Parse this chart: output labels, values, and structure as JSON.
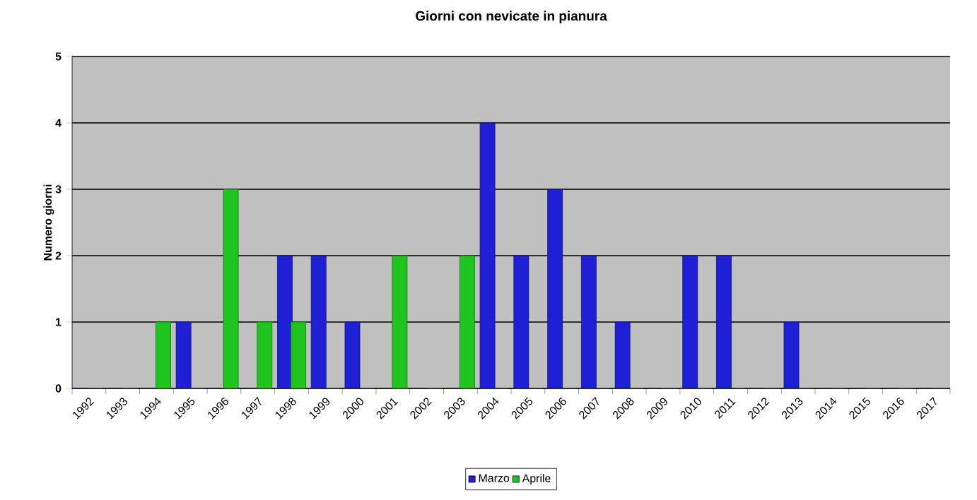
{
  "chart_data": {
    "type": "bar",
    "title": "Giorni con nevicate in pianura",
    "ylabel": "Numero giorni",
    "categories": [
      "1992",
      "1993",
      "1994",
      "1995",
      "1996",
      "1997",
      "1998",
      "1999",
      "2000",
      "2001",
      "2002",
      "2003",
      "2004",
      "2005",
      "2006",
      "2007",
      "2008",
      "2009",
      "2010",
      "2011",
      "2012",
      "2013",
      "2014",
      "2015",
      "2016",
      "2017"
    ],
    "series": [
      {
        "name": "Marzo",
        "color": "#1f1fd6",
        "values": [
          0,
          0,
          0,
          1,
          0,
          0,
          2,
          2,
          1,
          0,
          0,
          0,
          4,
          2,
          3,
          2,
          1,
          0,
          2,
          2,
          0,
          1,
          0,
          0,
          0,
          0
        ]
      },
      {
        "name": "Aprile",
        "color": "#1fc41f",
        "values": [
          0,
          0,
          1,
          0,
          3,
          1,
          1,
          0,
          0,
          2,
          0,
          2,
          0,
          0,
          0,
          0,
          0,
          0,
          0,
          0,
          0,
          0,
          0,
          0,
          0,
          0
        ]
      }
    ],
    "ylim": [
      0,
      5
    ],
    "yticks": [
      0,
      1,
      2,
      3,
      4,
      5
    ],
    "grid": "y",
    "legend": "bottom"
  }
}
